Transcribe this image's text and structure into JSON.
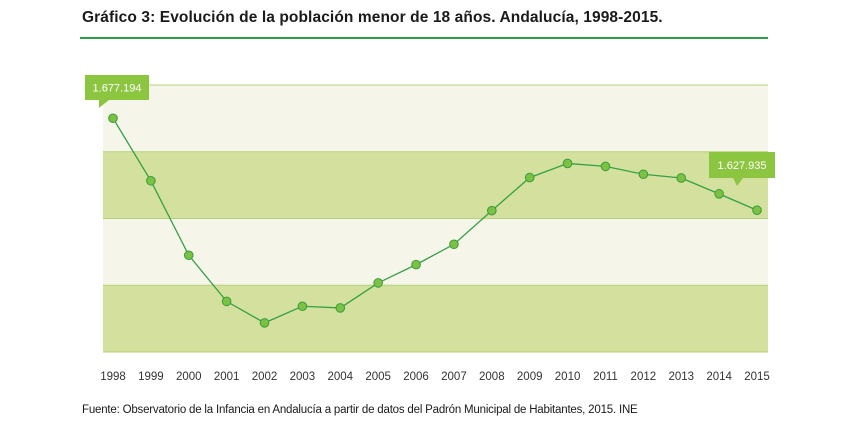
{
  "header": {
    "title": "Gráfico 3: Evolución de la población menor de 18 años. Andalucía, 1998-2015."
  },
  "footer": {
    "source": "Fuente: Observatorio de la Infancia en Andalucía a partir de datos del Padrón Municipal de Habitantes, 2015. INE"
  },
  "colors": {
    "title_rule": "#2f9e4b",
    "band_dark": "#d3e09e",
    "band_light": "#f5f5ea",
    "band_line": "#b5d27a",
    "line": "#35a046",
    "marker_fill": "#7cc242",
    "marker_stroke": "#3a9a3c",
    "callout_bg": "#8cc641"
  },
  "chart_data": {
    "type": "line",
    "x": [
      "1998",
      "1999",
      "2000",
      "2001",
      "2002",
      "2003",
      "2004",
      "2005",
      "2006",
      "2007",
      "2008",
      "2009",
      "2010",
      "2011",
      "2012",
      "2013",
      "2014",
      "2015"
    ],
    "y": [
      1677194,
      1643700,
      1603800,
      1579100,
      1567600,
      1576500,
      1575600,
      1589000,
      1598800,
      1609700,
      1627700,
      1645400,
      1653000,
      1651400,
      1647200,
      1645200,
      1636700,
      1627935
    ],
    "ylim": [
      1552000,
      1695000
    ],
    "grid": false,
    "background_bands": "alternating horizontal bands",
    "annotations": [
      {
        "label": "1.677.194",
        "x": "1998"
      },
      {
        "label": "1.627.935",
        "x": "2015"
      }
    ],
    "title": "",
    "xlabel": "",
    "ylabel": ""
  }
}
